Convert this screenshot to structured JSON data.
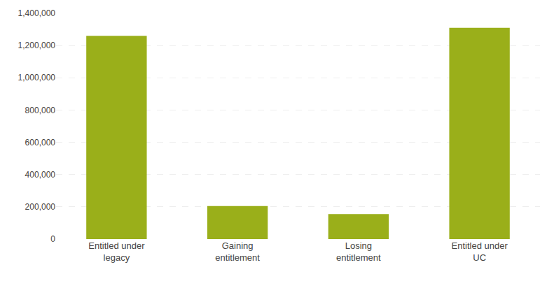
{
  "chart_data": {
    "type": "bar",
    "categories": [
      "Entitled under\nlegacy",
      "Gaining\nentitlement",
      "Losing\nentitlement",
      "Entitled under\nUC"
    ],
    "values": [
      1260000,
      205000,
      155000,
      1310000
    ],
    "color": "#9aaf1a",
    "ylim": [
      0,
      1400000
    ],
    "yticks": [
      0,
      {
        "value": 200000,
        "label": "200,000"
      },
      {
        "value": 400000,
        "label": "400,000"
      },
      {
        "value": 600000,
        "label": "600,000"
      },
      {
        "value": 800000,
        "label": "800,000"
      },
      {
        "value": 1000000,
        "label": "1,000,000"
      },
      {
        "value": 1200000,
        "label": "1,200,000"
      },
      {
        "value": 1400000,
        "label": "1,400,000"
      }
    ],
    "grid": true
  }
}
